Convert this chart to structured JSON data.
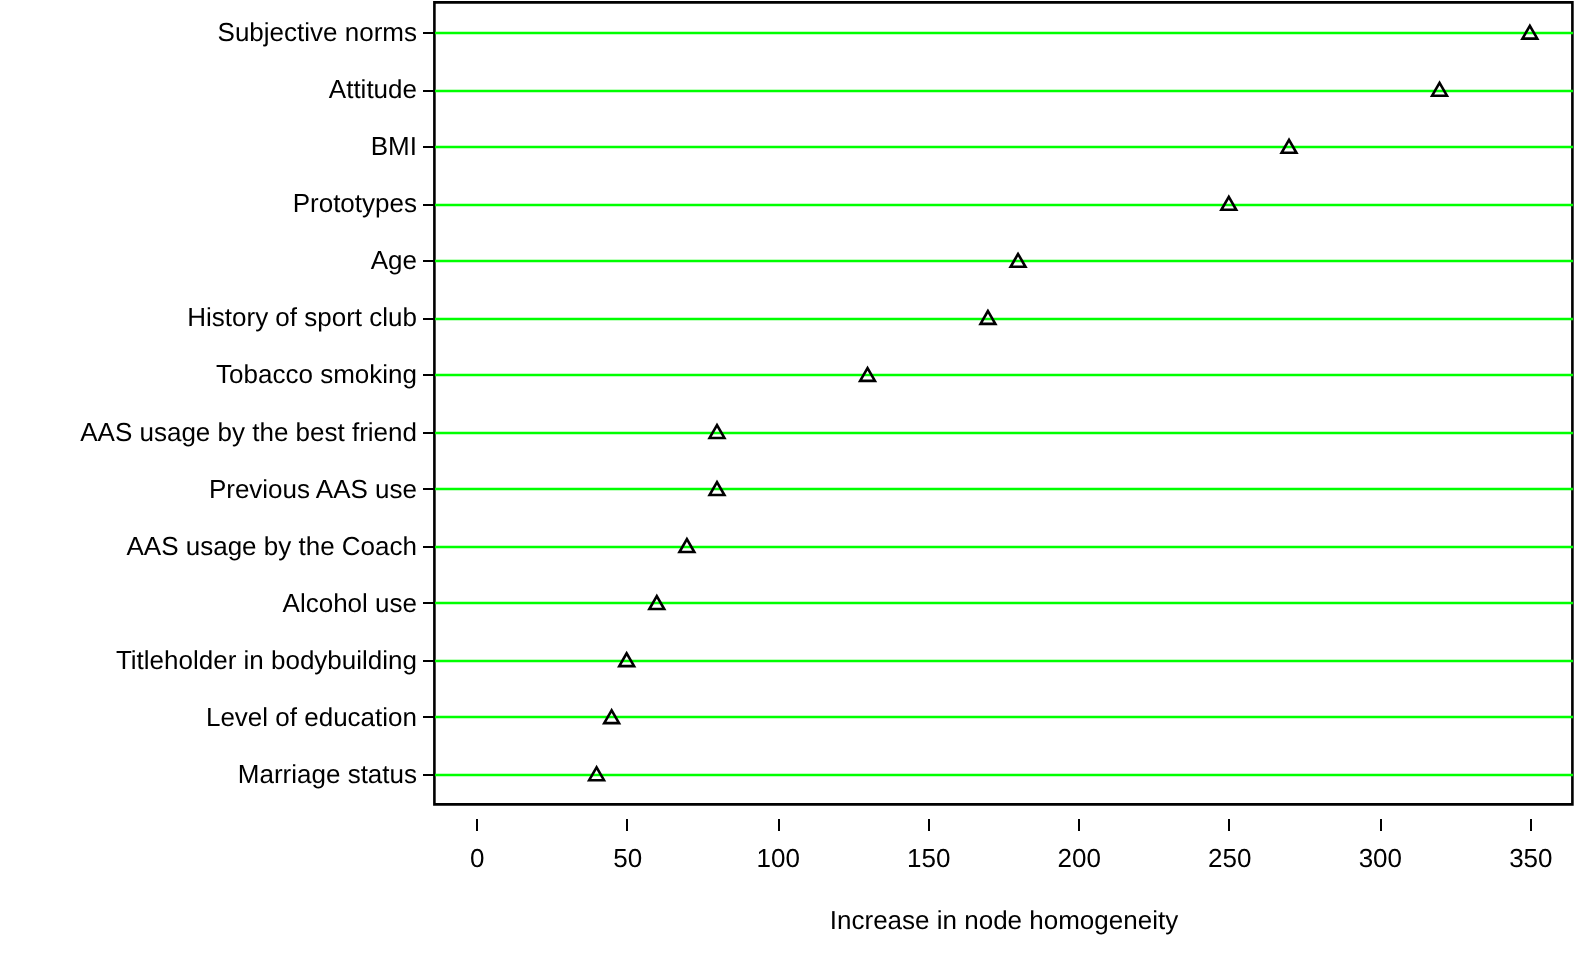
{
  "chart_data": {
    "type": "scatter",
    "orientation": "horizontal",
    "xlabel": "Increase in node homogeneity",
    "categories": [
      "Subjective norms",
      "Attitude",
      "BMI",
      "Prototypes",
      "Age",
      "History of sport club",
      "Tobacco smoking",
      "AAS usage by the best friend",
      "Previous AAS use",
      "AAS usage by the Coach",
      "Alcohol use",
      "Titleholder in bodybuilding",
      "Level of education",
      "Marriage status"
    ],
    "values": [
      350,
      320,
      270,
      250,
      180,
      170,
      130,
      80,
      80,
      70,
      60,
      50,
      45,
      40
    ],
    "color": "#000000",
    "marker": "triangle",
    "grid": "y",
    "xlim": [
      -14,
      364
    ],
    "xticks": [
      0,
      50,
      100,
      150,
      200,
      250,
      300,
      350
    ]
  }
}
